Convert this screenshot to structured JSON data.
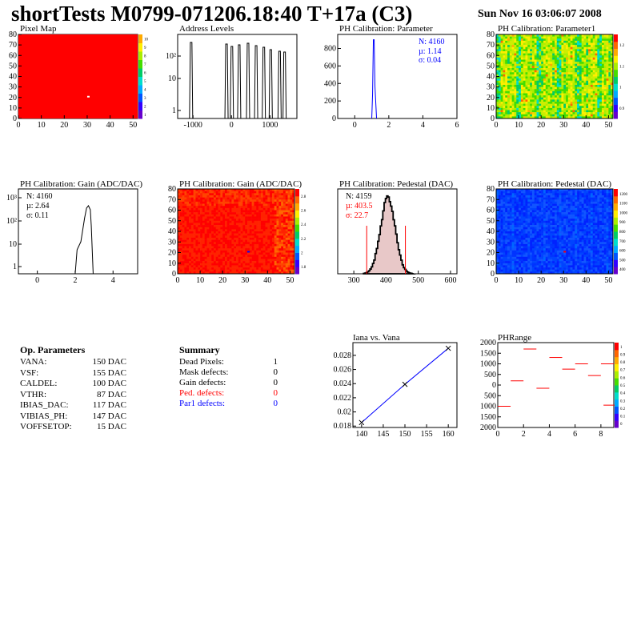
{
  "header": {
    "title": "shortTests M0799-071206.18:40 T+17a (C3)",
    "date": "Sun Nov 16 03:06:07 2008"
  },
  "colors": {
    "axis": "#000000",
    "hist_line": "#000000",
    "red": "#ff0000",
    "blue": "#0000ff",
    "pedestal_fill": "#e8c8c8"
  },
  "op_parameters": {
    "title": "Op. Parameters",
    "rows": [
      {
        "name": "VANA:",
        "value": "150 DAC"
      },
      {
        "name": "VSF:",
        "value": "155 DAC"
      },
      {
        "name": "CALDEL:",
        "value": "100 DAC"
      },
      {
        "name": "VTHR:",
        "value": "87 DAC"
      },
      {
        "name": "IBIAS_DAC:",
        "value": "117 DAC"
      },
      {
        "name": "VIBIAS_PH:",
        "value": "147 DAC"
      },
      {
        "name": "VOFFSETOP:",
        "value": "15 DAC"
      }
    ]
  },
  "summary": {
    "title": "Summary",
    "rows": [
      {
        "name": "Dead Pixels:",
        "value": "1",
        "color": "#000000"
      },
      {
        "name": "Mask defects:",
        "value": "0",
        "color": "#000000"
      },
      {
        "name": "Gain defects:",
        "value": "0",
        "color": "#000000"
      },
      {
        "name": "Ped. defects:",
        "value": "0",
        "color": "#ff0000"
      },
      {
        "name": "Par1 defects:",
        "value": "0",
        "color": "#0000ff"
      }
    ]
  },
  "chart_data": [
    {
      "id": "pixel-map",
      "type": "heatmap",
      "title": "Pixel Map",
      "xlim": [
        0,
        52
      ],
      "ylim": [
        0,
        80
      ],
      "x_ticks": [
        "0",
        "10",
        "20",
        "30",
        "40",
        "50"
      ],
      "y_ticks": [
        "0",
        "10",
        "20",
        "30",
        "40",
        "50",
        "60",
        "70",
        "80"
      ],
      "z_ticks": [
        "1",
        "2",
        "3",
        "4",
        "5",
        "6",
        "7",
        "8",
        "9",
        "10"
      ],
      "uniform_value": 10,
      "dead_pixels": [
        {
          "col": 30,
          "row": 20
        }
      ]
    },
    {
      "id": "address-levels",
      "type": "bar",
      "title": "Address Levels",
      "x_ticks": [
        "-1000",
        "0",
        "1000"
      ],
      "y_ticks": [
        "1",
        "10",
        "10²"
      ],
      "log_y": true,
      "peaks_x": [
        -1050,
        -130,
        10,
        200,
        430,
        640,
        840,
        1020,
        1250,
        1380
      ]
    },
    {
      "id": "ph-cal-parameter",
      "type": "bar",
      "title": "PH Calibration: Parameter",
      "x_ticks": [
        "0",
        "2",
        "4",
        "6"
      ],
      "y_ticks": [
        "0",
        "200",
        "400",
        "600",
        "800"
      ],
      "stats": {
        "entries": "N: 4160",
        "mean": "µ: 1.14",
        "sigma": "σ: 0.04"
      },
      "peak_x": 1.14,
      "peak_y": 900
    },
    {
      "id": "ph-cal-parameter1",
      "type": "heatmap",
      "title": "PH Calibration: Parameter1",
      "x_ticks": [
        "0",
        "10",
        "20",
        "30",
        "40",
        "50"
      ],
      "y_ticks": [
        "0",
        "10",
        "20",
        "30",
        "40",
        "50",
        "60",
        "70",
        "80"
      ],
      "z_ticks": [
        "0.9",
        "1",
        "1.1",
        "1.2"
      ]
    },
    {
      "id": "ph-cal-gain-hist",
      "type": "bar",
      "title": "PH Calibration: Gain (ADC/DAC)",
      "x_ticks": [
        "0",
        "2",
        "4"
      ],
      "y_ticks": [
        "1",
        "10",
        "10²",
        "10³"
      ],
      "log_y": true,
      "stats": {
        "entries": "N: 4160",
        "mean": "µ: 2.64",
        "sigma": "σ: 0.11"
      }
    },
    {
      "id": "ph-cal-gain-map",
      "type": "heatmap",
      "title": "PH Calibration: Gain (ADC/DAC)",
      "x_ticks": [
        "0",
        "10",
        "20",
        "30",
        "40",
        "50"
      ],
      "y_ticks": [
        "0",
        "10",
        "20",
        "30",
        "40",
        "50",
        "60",
        "70",
        "80"
      ],
      "z_ticks": [
        "1.8",
        "2",
        "2.2",
        "2.4",
        "2.6",
        "2.8"
      ]
    },
    {
      "id": "ph-cal-pedestal-hist",
      "type": "bar",
      "title": "PH Calibration: Pedestal (DAC)",
      "x_ticks": [
        "300",
        "400",
        "500",
        "600"
      ],
      "stats": {
        "entries": "N: 4159",
        "mean": "µ: 403.5",
        "sigma": "σ: 22.7"
      },
      "mean": 403.5,
      "sigma": 22.7,
      "cut_lines_x": [
        340,
        460
      ]
    },
    {
      "id": "ph-cal-pedestal-map",
      "type": "heatmap",
      "title": "PH Calibration: Pedestal (DAC)",
      "x_ticks": [
        "0",
        "10",
        "20",
        "30",
        "40",
        "50"
      ],
      "y_ticks": [
        "0",
        "10",
        "20",
        "30",
        "40",
        "50",
        "60",
        "70",
        "80"
      ],
      "z_ticks": [
        "400",
        "500",
        "600",
        "700",
        "800",
        "900",
        "1000",
        "1100",
        "1200"
      ]
    },
    {
      "id": "iana-vs-vana",
      "type": "line",
      "title": "Iana vs. Vana",
      "x": [
        140,
        150,
        160
      ],
      "y": [
        0.0185,
        0.0239,
        0.029
      ],
      "xlim": [
        138,
        162
      ],
      "ylim": [
        0.0178,
        0.0298
      ],
      "x_ticks": [
        "140",
        "145",
        "150",
        "155",
        "160"
      ],
      "y_ticks": [
        "0.018",
        "0.02",
        "0.022",
        "0.024",
        "0.026",
        "0.028"
      ]
    },
    {
      "id": "phrange",
      "type": "scatter",
      "title": "PHRange",
      "x_ticks": [
        "0",
        "2",
        "4",
        "6",
        "8"
      ],
      "y_ticks": [
        "2000",
        "1500",
        "1000",
        "500",
        "0",
        "500",
        "1000",
        "1500",
        "2000"
      ],
      "z_ticks": [
        "0",
        "0.1",
        "0.2",
        "0.3",
        "0.4",
        "0.5",
        "0.6",
        "0.7",
        "0.8",
        "0.9",
        "1"
      ],
      "segments": [
        {
          "x": 0.5,
          "y": -1000
        },
        {
          "x": 1.5,
          "y": 200
        },
        {
          "x": 2.5,
          "y": 1700
        },
        {
          "x": 3.5,
          "y": -150
        },
        {
          "x": 4.5,
          "y": 1300
        },
        {
          "x": 5.5,
          "y": 750
        },
        {
          "x": 6.5,
          "y": 1000
        },
        {
          "x": 7.5,
          "y": 450
        },
        {
          "x": 8.5,
          "y": 1000
        },
        {
          "x": 8.7,
          "y": -950
        }
      ]
    }
  ]
}
